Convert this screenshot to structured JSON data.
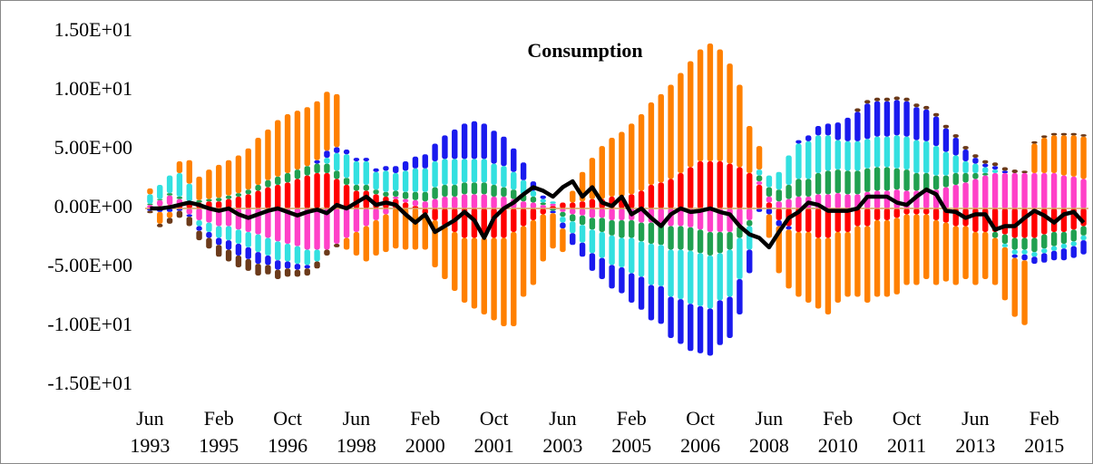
{
  "chart_data": {
    "type": "bar",
    "stacked": true,
    "title": "Consumption",
    "categories": [
      "Jun\n1993",
      null,
      null,
      null,
      null,
      null,
      null,
      "Feb\n1995",
      null,
      null,
      null,
      null,
      null,
      null,
      "Oct\n1996",
      null,
      null,
      null,
      null,
      null,
      null,
      "Jun\n1998",
      null,
      null,
      null,
      null,
      null,
      null,
      "Feb\n2000",
      null,
      null,
      null,
      null,
      null,
      null,
      "Oct\n2001",
      null,
      null,
      null,
      null,
      null,
      null,
      "Jun\n2003",
      null,
      null,
      null,
      null,
      null,
      null,
      "Feb\n2005",
      null,
      null,
      null,
      null,
      null,
      null,
      "Oct\n2006",
      null,
      null,
      null,
      null,
      null,
      null,
      "Jun\n2008",
      null,
      null,
      null,
      null,
      null,
      null,
      "Feb\n2010",
      null,
      null,
      null,
      null,
      null,
      null,
      "Oct\n2011",
      null,
      null,
      null,
      null,
      null,
      null,
      "Jun\n2013",
      null,
      null,
      null,
      null,
      null,
      null,
      "Feb\n2015",
      null,
      null,
      null,
      null
    ],
    "ylim": [
      -15,
      15
    ],
    "yticks": [
      {
        "value": 15,
        "label": "1.50E+01"
      },
      {
        "value": 10,
        "label": "1.00E+01"
      },
      {
        "value": 5,
        "label": "5.00E+00"
      },
      {
        "value": 0,
        "label": "0.00E+00"
      },
      {
        "value": -5,
        "label": "-5.00E+00"
      },
      {
        "value": -10,
        "label": "-1.00E+01"
      },
      {
        "value": -15,
        "label": "-1.50E+01"
      }
    ],
    "grid": false,
    "series": [
      {
        "color": "#ff0000",
        "values": [
          0,
          0.2,
          0.3,
          0.3,
          0.4,
          0.5,
          0.6,
          0.6,
          0.8,
          1,
          1.2,
          1.5,
          1.8,
          2,
          2.2,
          2.5,
          2.8,
          3,
          3,
          2.5,
          2,
          1.5,
          1.5,
          1.2,
          1,
          0.8,
          0.5,
          0.2,
          -0.5,
          -1,
          -1.5,
          -2,
          -2.5,
          -2.5,
          -2.5,
          -2.5,
          -2.5,
          -2,
          -1.5,
          -1,
          -0.5,
          0.2,
          0.5,
          0.5,
          0.6,
          0.8,
          0.8,
          1,
          1,
          1.2,
          1.5,
          2,
          2.2,
          2.5,
          3,
          3.5,
          4,
          4,
          4,
          3.8,
          3.5,
          3,
          2,
          0.5,
          -1,
          -1.5,
          -2,
          -2,
          -2.5,
          -2.5,
          -2,
          -2,
          -1.5,
          -1.5,
          -1,
          -1,
          -0.8,
          -0.5,
          -0.5,
          -0.5,
          -1,
          -1.2,
          -1.5,
          -1.5,
          -2,
          -2,
          -2,
          -2.2,
          -2.5,
          -2.5,
          -2.5,
          -2.2,
          -2,
          -2,
          -1.8,
          -1.5
        ]
      },
      {
        "color": "#ff40c8",
        "values": [
          0.3,
          0.5,
          0.8,
          0.5,
          -0.5,
          -1,
          -1.2,
          -1.5,
          -1.5,
          -1.8,
          -2,
          -2.2,
          -2.5,
          -2.8,
          -3,
          -3.2,
          -3.5,
          -3.5,
          -3.5,
          -3,
          -2.5,
          -2,
          -1.5,
          -1,
          -0.5,
          0.2,
          0.3,
          0.5,
          0.6,
          0.8,
          1,
          1,
          1.2,
          1.2,
          1.2,
          1,
          1,
          0.8,
          0.6,
          0.5,
          0.3,
          0.2,
          -0.3,
          -0.5,
          -0.6,
          -0.8,
          -0.8,
          -1,
          -1,
          -1,
          -1.2,
          -1.2,
          -1.3,
          -1.5,
          -1.5,
          -1.6,
          -1.8,
          -2,
          -2,
          -2,
          -1.5,
          -1,
          0.3,
          0.5,
          0.6,
          0.8,
          1,
          1,
          1.2,
          1.2,
          1.3,
          1.2,
          1.2,
          1.4,
          1.5,
          1.5,
          1.6,
          1.5,
          1.5,
          1.5,
          1.6,
          1.8,
          2,
          2.2,
          2.5,
          2.8,
          3,
          3,
          3,
          3,
          3,
          3,
          3,
          2.8,
          2.7,
          2.5
        ]
      },
      {
        "color": "#20a050",
        "values": [
          0.1,
          0.1,
          0.2,
          0.2,
          0.2,
          0.2,
          0.2,
          0.3,
          0.3,
          0.3,
          0.4,
          0.5,
          0.6,
          0.7,
          0.8,
          0.8,
          0.8,
          0.8,
          0.8,
          0.7,
          0.6,
          0.5,
          0.5,
          0.4,
          0.4,
          0.5,
          0.6,
          0.7,
          0.8,
          1,
          1,
          1,
          1,
          1,
          1,
          1,
          0.8,
          0.8,
          0.6,
          0.5,
          0.2,
          -0.2,
          -0.4,
          -0.6,
          -0.8,
          -1,
          -1.2,
          -1.3,
          -1.5,
          -1.5,
          -1.6,
          -1.8,
          -1.8,
          -2,
          -2,
          -2,
          -2,
          -2,
          -1.8,
          -1.5,
          -1,
          -0.5,
          0.5,
          0.8,
          1,
          1.2,
          1.5,
          1.5,
          1.8,
          2,
          2,
          2,
          2,
          2,
          2,
          2,
          1.8,
          1.8,
          1.5,
          1.5,
          1.2,
          1,
          1,
          0.8,
          0.5,
          0.2,
          -0.5,
          -0.8,
          -1,
          -1,
          -1.2,
          -1.2,
          -1.2,
          -1,
          -1,
          -0.8
        ]
      },
      {
        "color": "#33e0e0",
        "values": [
          0.8,
          1.2,
          1.5,
          2,
          1.5,
          -0.5,
          -0.8,
          -1,
          -1.2,
          -1.2,
          -1.3,
          -1.5,
          -1.5,
          -1.6,
          -1.5,
          -1.5,
          -1.3,
          -1,
          0.5,
          1.5,
          2,
          2,
          2,
          1.5,
          1.8,
          1.5,
          1.8,
          2,
          2,
          2.2,
          2.2,
          2.2,
          2,
          2,
          2,
          1.8,
          1.8,
          1.5,
          1.2,
          0.5,
          0.3,
          0.2,
          -0.5,
          -1,
          -1.5,
          -2,
          -2.2,
          -2.5,
          -2.5,
          -3,
          -3,
          -3.5,
          -3.5,
          -4,
          -4.2,
          -4.5,
          -4.5,
          -4.5,
          -4,
          -4,
          -3.5,
          -2,
          0.5,
          1,
          1.5,
          2.5,
          3,
          3.2,
          3.2,
          3,
          2.5,
          2.5,
          2.5,
          2.5,
          2.6,
          2.6,
          2.8,
          2.8,
          2.8,
          2.7,
          2.5,
          2,
          1.5,
          1,
          0.8,
          0.5,
          0.3,
          -0.3,
          -0.4,
          -0.4,
          -0.4,
          -0.4,
          -0.4,
          -0.4,
          -0.4,
          -0.4
        ]
      },
      {
        "color": "#1a1aee",
        "values": [
          -0.2,
          -0.3,
          -0.3,
          -0.2,
          -0.2,
          -0.4,
          -0.5,
          -0.6,
          -0.8,
          -1,
          -1,
          -1,
          -0.8,
          -0.8,
          -0.6,
          -0.5,
          -0.3,
          0.3,
          0.6,
          0.5,
          0.4,
          0.3,
          0.3,
          0.3,
          0.4,
          0.6,
          0.8,
          1,
          1.2,
          1.5,
          2,
          2.5,
          3,
          3.2,
          3,
          2.8,
          2.5,
          2,
          1.5,
          0.8,
          0.3,
          -0.2,
          -0.5,
          -1,
          -1.2,
          -1.5,
          -1.8,
          -2,
          -2.2,
          -2.5,
          -2.8,
          -3,
          -3.2,
          -3.5,
          -3.8,
          -4,
          -4,
          -4,
          -3.8,
          -3.5,
          -3,
          -2,
          -0.3,
          -0.5,
          -0.5,
          -0.3,
          0.3,
          0.5,
          0.8,
          1,
          1.5,
          2,
          2.5,
          3,
          3,
          3,
          3,
          3,
          2.8,
          2.7,
          2.5,
          2,
          1.5,
          1,
          0.5,
          0.3,
          0.3,
          0.2,
          -0.3,
          -0.5,
          -0.6,
          -0.8,
          -0.8,
          -1,
          -1,
          -1.2
        ]
      },
      {
        "color": "#ff8000",
        "values": [
          0.5,
          -1,
          -0.5,
          1,
          2,
          2,
          2.5,
          2.8,
          3,
          3.2,
          3.5,
          4,
          4.3,
          4.8,
          5,
          5,
          5,
          5,
          5,
          4.5,
          -1,
          -2,
          -3,
          -3,
          -3.2,
          -3.4,
          -3.5,
          -3.5,
          -3,
          -4,
          -4.5,
          -5,
          -5.5,
          -6,
          -6.5,
          -7,
          -7.5,
          -8,
          -6,
          -5.5,
          -4,
          -3,
          -2,
          1,
          2.5,
          3.5,
          4.5,
          5,
          5.5,
          6,
          6.5,
          7,
          7.5,
          8,
          8.5,
          9,
          9.5,
          10,
          9.5,
          8.5,
          7,
          4,
          2,
          -2,
          -4,
          -5,
          -5.5,
          -6,
          -6,
          -6.5,
          -6,
          -5.5,
          -6,
          -6.5,
          -6.5,
          -6.5,
          -6.5,
          -6,
          -6,
          -5.5,
          -5.5,
          -5,
          -5,
          -4.5,
          -4.5,
          -4,
          -4,
          -4.5,
          -5,
          -5.5,
          2.5,
          3,
          3.2,
          3.4,
          3.5,
          3.6
        ]
      },
      {
        "color": "#6b3a1a",
        "values": [
          -0.2,
          -0.3,
          -0.5,
          -0.6,
          -0.8,
          -0.8,
          -0.9,
          -1,
          -1,
          -1,
          -1,
          -1,
          -0.8,
          -0.8,
          -0.7,
          -0.6,
          -0.6,
          -0.6,
          -0.5,
          -0.3,
          0,
          0,
          0,
          0,
          0,
          0,
          0,
          0,
          0,
          0,
          0,
          0,
          0,
          0,
          0,
          0,
          0,
          0,
          0,
          0,
          0,
          0,
          0,
          0,
          0,
          0,
          0,
          0,
          0,
          0,
          0,
          0,
          0,
          0,
          0,
          0,
          0,
          0,
          0,
          0,
          0,
          0,
          0,
          0,
          0,
          0,
          0,
          0,
          0,
          0,
          0,
          0,
          0.3,
          0.3,
          0.3,
          0.3,
          0.3,
          0.3,
          0.3,
          0.3,
          0.3,
          0.3,
          0.3,
          0.3,
          0.3,
          0.3,
          0.3,
          0.3,
          0.3,
          0.2,
          0.2,
          0.2,
          0.2,
          0.2,
          0.2,
          0.2
        ]
      },
      {
        "type": "line",
        "color": "#000000",
        "values": [
          0,
          0,
          0.1,
          0.3,
          0.5,
          0.3,
          0,
          -0.2,
          0,
          -0.5,
          -0.8,
          -0.5,
          -0.2,
          0,
          -0.3,
          -0.6,
          -0.3,
          -0.1,
          -0.4,
          0.3,
          0,
          0.5,
          1,
          0.3,
          0.5,
          0.3,
          -0.5,
          -1.2,
          -0.5,
          -2,
          -1.5,
          -1,
          -0.3,
          -1,
          -2.5,
          -0.8,
          0,
          0.5,
          1.2,
          1.8,
          1.5,
          1,
          1.8,
          2.3,
          1,
          1.8,
          0.5,
          0.2,
          1,
          -0.5,
          0,
          -0.8,
          -1.5,
          -0.5,
          0,
          -0.3,
          -0.2,
          0,
          -0.3,
          -0.5,
          -1.5,
          -2.2,
          -2.5,
          -3.3,
          -2,
          -0.8,
          -0.3,
          0.5,
          0.3,
          -0.2,
          -0.2,
          -0.2,
          0,
          1,
          1,
          1,
          0.5,
          0.3,
          1,
          1.6,
          1.2,
          -0.2,
          -0.3,
          -0.8,
          -0.5,
          -0.5,
          -1.8,
          -1.5,
          -1.5,
          -0.8,
          -0.2,
          -0.6,
          -1.2,
          -0.5,
          -0.3,
          -1.2
        ]
      }
    ]
  }
}
